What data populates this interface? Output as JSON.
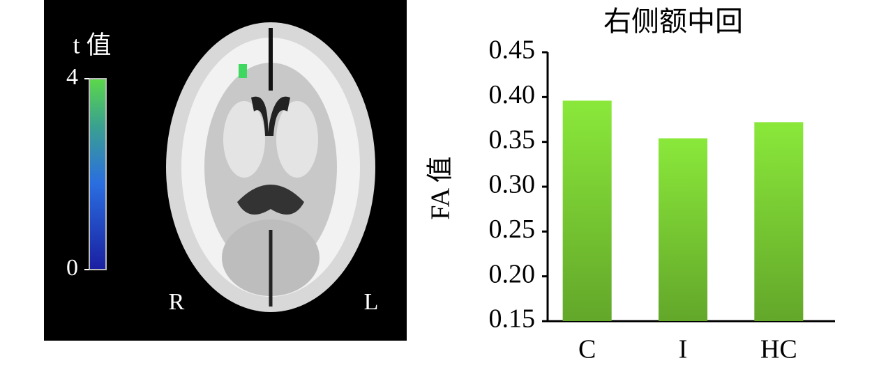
{
  "brain_panel": {
    "colorbar_label": "t 值",
    "colorbar_lim": [
      0,
      4
    ],
    "colorbar_ticks": [
      0,
      4
    ],
    "side_labels": [
      "R",
      "L"
    ]
  },
  "chart_data": {
    "type": "bar",
    "title": "右侧额中回",
    "y_label": "FA 值",
    "categories": [
      "C",
      "I",
      "HC"
    ],
    "values": [
      0.396,
      0.354,
      0.372
    ],
    "color": "#8ae83a",
    "ylim": [
      0.15,
      0.45
    ],
    "yticks": [
      0.15,
      {
        "value": 0.2,
        "label": "0.20"
      },
      0.25,
      {
        "value": 0.3,
        "label": "0.30"
      },
      0.35,
      {
        "value": 0.4,
        "label": "0.40"
      },
      0.45
    ]
  }
}
